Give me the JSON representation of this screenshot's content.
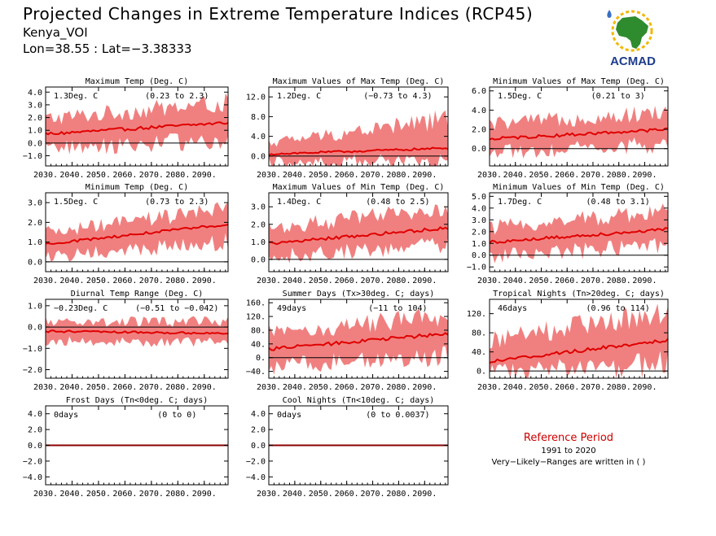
{
  "header": {
    "title": "Projected Changes in Extreme Temperature Indices (RCP45)",
    "location": "Kenya_VOI",
    "coords": "Lon=38.55 : Lat=−3.38333"
  },
  "logo": {
    "text": "ACMAD",
    "icon": "africa-map-sun-logo",
    "colors": {
      "africa": "#2e8b2e",
      "sun": "#f2b705",
      "text": "#1f3d8c",
      "drop": "#3a6fc4"
    }
  },
  "reference": {
    "title": "Reference Period",
    "period": "1991 to 2020",
    "note": "Very−Likely−Ranges are written in ( )"
  },
  "colors": {
    "band": "#f08080",
    "line": "#e00000",
    "zero": "#000000",
    "frost_line": "#8b0000"
  },
  "chart_data": [
    {
      "type": "area",
      "title": "Maximum Temp (Deg. C)",
      "summary": "1.3Deg. C",
      "range": "(0.23 to 2.3)",
      "x": [
        2030,
        2099
      ],
      "xticks": [
        "2030.",
        "2040.",
        "2050.",
        "2060.",
        "2070.",
        "2080.",
        "2090."
      ],
      "ylim": [
        -1.8,
        4.4
      ],
      "yticks": [
        -1.0,
        0.0,
        1.0,
        2.0,
        3.0,
        4.0
      ],
      "yticklabels": [
        "−1.0",
        "0.0",
        "1.0",
        "2.0",
        "3.0",
        "4.0"
      ],
      "median_start": 0.7,
      "median_end": 1.6,
      "low_start": -0.3,
      "low_end": 0.4,
      "high_start": 1.8,
      "high_end": 3.0
    },
    {
      "type": "area",
      "title": "Maximum Values of Max Temp (Deg. C)",
      "summary": "1.2Deg. C",
      "range": "(−0.73 to 4.3)",
      "x": [
        2030,
        2099
      ],
      "xticks": [
        "2030.",
        "2040.",
        "2050.",
        "2060.",
        "2070.",
        "2080.",
        "2090."
      ],
      "ylim": [
        -2.0,
        14.0
      ],
      "yticks": [
        0.0,
        4.0,
        8.0,
        12.0
      ],
      "yticklabels": [
        "0.0",
        "4.0",
        "8.0",
        "12.0"
      ],
      "median_start": 0.4,
      "median_end": 1.6,
      "low_start": -1.0,
      "low_end": -0.5,
      "high_start": 2.5,
      "high_end": 7.0
    },
    {
      "type": "area",
      "title": "Minimum Values of Max Temp (Deg. C)",
      "summary": "1.5Deg. C",
      "range": "(0.21 to 3)",
      "x": [
        2030,
        2099
      ],
      "xticks": [
        "2030.",
        "2040.",
        "2050.",
        "2060.",
        "2070.",
        "2080.",
        "2090."
      ],
      "ylim": [
        -1.8,
        6.4
      ],
      "yticks": [
        0.0,
        2.0,
        4.0,
        6.0
      ],
      "yticklabels": [
        "0.0",
        "2.0",
        "4.0",
        "6.0"
      ],
      "median_start": 1.0,
      "median_end": 2.0,
      "low_start": -0.2,
      "low_end": 0.6,
      "high_start": 2.4,
      "high_end": 3.6
    },
    {
      "type": "area",
      "title": "Minimum Temp (Deg. C)",
      "summary": "1.5Deg. C",
      "range": "(0.73 to 2.3)",
      "x": [
        2030,
        2099
      ],
      "xticks": [
        "2030.",
        "2040.",
        "2050.",
        "2060.",
        "2070.",
        "2080.",
        "2090."
      ],
      "ylim": [
        -0.5,
        3.5
      ],
      "yticks": [
        0.0,
        1.0,
        2.0,
        3.0
      ],
      "yticklabels": [
        "0.0",
        "1.0",
        "2.0",
        "3.0"
      ],
      "median_start": 0.9,
      "median_end": 1.9,
      "low_start": 0.3,
      "low_end": 1.1,
      "high_start": 1.4,
      "high_end": 2.6
    },
    {
      "type": "area",
      "title": "Maximum Values of Min Temp (Deg. C)",
      "summary": "1.4Deg. C",
      "range": "(0.48 to 2.5)",
      "x": [
        2030,
        2099
      ],
      "xticks": [
        "2030.",
        "2040.",
        "2050.",
        "2060.",
        "2070.",
        "2080.",
        "2090."
      ],
      "ylim": [
        -0.7,
        3.8
      ],
      "yticks": [
        0.0,
        1.0,
        2.0,
        3.0
      ],
      "yticklabels": [
        "0.0",
        "1.0",
        "2.0",
        "3.0"
      ],
      "median_start": 0.9,
      "median_end": 1.8,
      "low_start": 0.2,
      "low_end": 1.0,
      "high_start": 1.7,
      "high_end": 2.8
    },
    {
      "type": "area",
      "title": "Minimum Values of Min Temp (Deg. C)",
      "summary": "1.7Deg. C",
      "range": "(0.48 to 3.1)",
      "x": [
        2030,
        2099
      ],
      "xticks": [
        "2030.",
        "2040.",
        "2050.",
        "2060.",
        "2070.",
        "2080.",
        "2090."
      ],
      "ylim": [
        -1.4,
        5.3
      ],
      "yticks": [
        -1.0,
        0.0,
        1.0,
        2.0,
        3.0,
        4.0,
        5.0
      ],
      "yticklabels": [
        "−1.0",
        "0.0",
        "1.0",
        "2.0",
        "3.0",
        "4.0",
        "5.0"
      ],
      "median_start": 1.1,
      "median_end": 2.2,
      "low_start": 0.0,
      "low_end": 1.0,
      "high_start": 2.2,
      "high_end": 3.6
    },
    {
      "type": "area",
      "title": "Diurnal Temp Range (Deg. C)",
      "summary": "−0.23Deg. C",
      "range": "(−0.51 to −0.042)",
      "x": [
        2030,
        2099
      ],
      "xticks": [
        "2030.",
        "2040.",
        "2050.",
        "2060.",
        "2070.",
        "2080.",
        "2090."
      ],
      "ylim": [
        -2.4,
        1.3
      ],
      "yticks": [
        -2.0,
        -1.0,
        0.0,
        1.0
      ],
      "yticklabels": [
        "−2.0",
        "−1.0",
        "0.0",
        "1.0"
      ],
      "median_start": -0.2,
      "median_end": -0.3,
      "low_start": -0.6,
      "low_end": -0.7,
      "high_start": 0.2,
      "high_end": 0.2
    },
    {
      "type": "area",
      "title": "Summer Days (Tx>30deg. C; days)",
      "summary": "49days",
      "range": "(−11 to 104)",
      "x": [
        2030,
        2099
      ],
      "xticks": [
        "2030.",
        "2040.",
        "2050.",
        "2060.",
        "2070.",
        "2080.",
        "2090."
      ],
      "ylim": [
        -60,
        170
      ],
      "yticks": [
        -40,
        0,
        40,
        80,
        120,
        160
      ],
      "yticklabels": [
        "−40.",
        "0.",
        "40.",
        "80.",
        "120.",
        "160."
      ],
      "median_start": 25,
      "median_end": 70,
      "low_start": -20,
      "low_end": 10,
      "high_start": 65,
      "high_end": 115
    },
    {
      "type": "area",
      "title": "Tropical Nights (Tn>20deg. C; days)",
      "summary": "46days",
      "range": "(0.96 to 114)",
      "x": [
        2030,
        2099
      ],
      "xticks": [
        "2030.",
        "2040.",
        "2050.",
        "2060.",
        "2070.",
        "2080.",
        "2090."
      ],
      "ylim": [
        -15,
        150
      ],
      "yticks": [
        0,
        40,
        80,
        120
      ],
      "yticklabels": [
        "0.",
        "40.",
        "80.",
        "120."
      ],
      "median_start": 20,
      "median_end": 65,
      "low_start": 0,
      "low_end": 20,
      "high_start": 60,
      "high_end": 120
    },
    {
      "type": "line",
      "title": "Frost Days (Tn<0deg. C; days)",
      "summary": "0days",
      "range": "(0 to 0)",
      "x": [
        2030,
        2099
      ],
      "xticks": [
        "2030.",
        "2040.",
        "2050.",
        "2060.",
        "2070.",
        "2080.",
        "2090."
      ],
      "ylim": [
        -5,
        5
      ],
      "yticks": [
        -4.0,
        -2.0,
        0.0,
        2.0,
        4.0
      ],
      "yticklabels": [
        "−4.0",
        "−2.0",
        "0.0",
        "2.0",
        "4.0"
      ],
      "median_start": 0,
      "median_end": 0,
      "low_start": 0,
      "low_end": 0,
      "high_start": 0,
      "high_end": 0
    },
    {
      "type": "line",
      "title": "Cool Nights (Tn<10deg. C; days)",
      "summary": "0days",
      "range": "(0 to 0.0037)",
      "x": [
        2030,
        2099
      ],
      "xticks": [
        "2030.",
        "2040.",
        "2050.",
        "2060.",
        "2070.",
        "2080.",
        "2090."
      ],
      "ylim": [
        -5,
        5
      ],
      "yticks": [
        -4.0,
        -2.0,
        0.0,
        2.0,
        4.0
      ],
      "yticklabels": [
        "−4.0",
        "−2.0",
        "0.0",
        "2.0",
        "4.0"
      ],
      "median_start": 0,
      "median_end": 0,
      "low_start": 0,
      "low_end": 0,
      "high_start": 0,
      "high_end": 0
    }
  ]
}
